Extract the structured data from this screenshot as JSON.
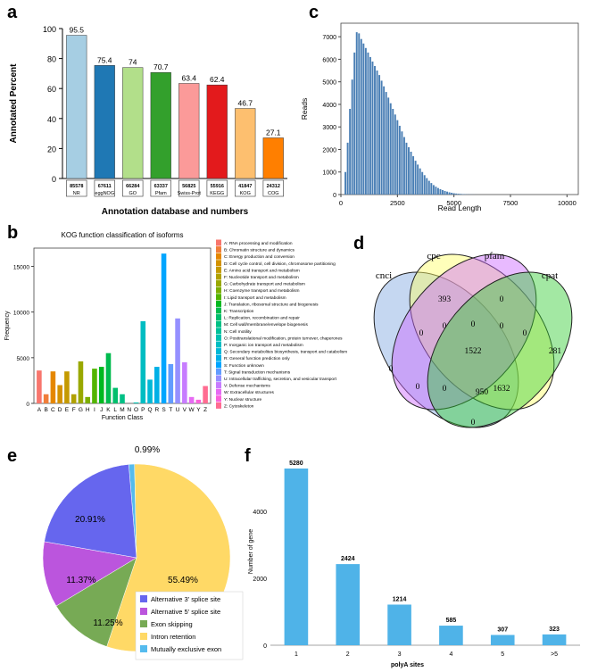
{
  "panels": {
    "a": "a",
    "b": "b",
    "c": "c",
    "d": "d",
    "e": "e",
    "f": "f"
  },
  "chart_data": [
    {
      "id": "a",
      "type": "bar",
      "title": "",
      "xlabel": "Annotation database and numbers",
      "ylabel": "Annotated Percent",
      "ylim": [
        0,
        100
      ],
      "yticks": [
        "0",
        "20",
        "40",
        "60",
        "80",
        "100"
      ],
      "categories": [
        "NR",
        "eggNOG",
        "GO",
        "Pfam",
        "Swiss-Prot",
        "KEGG",
        "KOG",
        "COG"
      ],
      "numbers": [
        "85578",
        "67611",
        "66284",
        "63337",
        "56825",
        "55916",
        "41847",
        "24312"
      ],
      "values": [
        95.5,
        75.4,
        74,
        70.7,
        63.4,
        62.4,
        46.7,
        27.1
      ],
      "value_labels": [
        "95.5",
        "75.4",
        "74",
        "70.7",
        "63.4",
        "62.4",
        "46.7",
        "27.1"
      ],
      "colors": [
        "#a6cee3",
        "#1f78b4",
        "#b2df8a",
        "#33a02c",
        "#fb9a99",
        "#e31a1c",
        "#fdbf6f",
        "#ff7f00"
      ]
    },
    {
      "id": "c",
      "type": "bar",
      "title": "",
      "xlabel": "Read Length",
      "ylabel": "Reads",
      "xlim": [
        0,
        10500
      ],
      "ylim": [
        0,
        7600
      ],
      "xticks": [
        0,
        2500,
        5000,
        7500,
        10000
      ],
      "xtick_labels": [
        "0",
        "2500",
        "5000",
        "7500",
        "10000"
      ],
      "yticks": [
        0,
        1000,
        2000,
        3000,
        4000,
        5000,
        6000,
        7000
      ],
      "ytick_labels": [
        "0",
        "1000",
        "2000",
        "3000",
        "4000",
        "5000",
        "6000",
        "7000"
      ],
      "bin_width": 100,
      "x": [
        200,
        300,
        400,
        500,
        600,
        700,
        800,
        900,
        1000,
        1100,
        1200,
        1300,
        1400,
        1500,
        1600,
        1700,
        1800,
        1900,
        2000,
        2100,
        2200,
        2300,
        2400,
        2500,
        2600,
        2700,
        2800,
        2900,
        3000,
        3100,
        3200,
        3300,
        3400,
        3500,
        3600,
        3700,
        3800,
        3900,
        4000,
        4100,
        4200,
        4300,
        4400,
        4500,
        4600,
        4700,
        4800,
        4900,
        5000,
        5100,
        5200,
        5300,
        5400,
        5500,
        5600,
        5700,
        5800,
        5900,
        6000
      ],
      "values": [
        1000,
        2300,
        3800,
        5100,
        6300,
        7200,
        7150,
        6900,
        6700,
        6500,
        6300,
        6100,
        5900,
        5700,
        5500,
        5300,
        5050,
        4800,
        4550,
        4300,
        4050,
        3800,
        3550,
        3300,
        3050,
        2800,
        2550,
        2300,
        2100,
        1900,
        1700,
        1500,
        1330,
        1160,
        1000,
        860,
        730,
        610,
        510,
        420,
        350,
        290,
        240,
        200,
        160,
        130,
        100,
        80,
        60,
        45,
        35,
        28,
        20,
        15,
        10,
        8,
        5,
        3,
        2
      ],
      "color": "#4a7fb5"
    },
    {
      "id": "b",
      "type": "bar",
      "title": "KOG function classification of isoforms",
      "xlabel": "Function Class",
      "ylabel": "Frequency",
      "ylim": [
        0,
        17000
      ],
      "yticks": [
        0,
        5000,
        10000,
        15000
      ],
      "ytick_labels": [
        "0",
        "5000",
        "10000",
        "15000"
      ],
      "categories": [
        "A",
        "B",
        "C",
        "D",
        "E",
        "F",
        "G",
        "H",
        "I",
        "J",
        "K",
        "L",
        "M",
        "N",
        "O",
        "P",
        "Q",
        "R",
        "S",
        "T",
        "U",
        "V",
        "W",
        "Y",
        "Z"
      ],
      "values": [
        3600,
        1000,
        3500,
        2000,
        3500,
        1000,
        4600,
        700,
        3800,
        4000,
        5500,
        1700,
        1000,
        0,
        100,
        9000,
        2600,
        4000,
        16400,
        4300,
        9300,
        4500,
        700,
        400,
        1900
      ],
      "colors": [
        "#f8766d",
        "#f07e3a",
        "#e58700",
        "#d39200",
        "#c49a00",
        "#b0a100",
        "#99a800",
        "#7cae00",
        "#53b400",
        "#00b81f",
        "#00bb4e",
        "#00be6c",
        "#00c085",
        "#00c19a",
        "#00c0b0",
        "#00bdc2",
        "#00b8d6",
        "#00b0e6",
        "#00a5ff",
        "#619cff",
        "#9590ff",
        "#c77cff",
        "#e76bf3",
        "#fa62db",
        "#ff6c91"
      ],
      "legend": [
        "A: RNA processing and modification",
        "B: Chromatin structure and dynamics",
        "C: Energy production and conversion",
        "D: Cell cycle control, cell division, chromosome partitioning",
        "E: Amino acid transport and metabolism",
        "F: Nucleotide transport and metabolism",
        "G: Carbohydrate transport and metabolism",
        "H: Coenzyme transport and metabolism",
        "I: Lipid transport and metabolism",
        "J: Translation, ribosomal structure and biogenesis",
        "K: Transcription",
        "L: Replication, recombination and repair",
        "M: Cell wall/membrane/envelope biogenesis",
        "N: Cell motility",
        "O: Posttranslational modification, protein turnover, chaperones",
        "P: Inorganic ion transport and metabolism",
        "Q: Secondary metabolites biosynthesis, transport and catabolism",
        "R: General function prediction only",
        "S: Function unknown",
        "T: Signal transduction mechanisms",
        "U: Intracellular trafficking, secretion, and vesicular transport",
        "V: Defense mechanisms",
        "W: Extracellular structures",
        "Y: Nuclear structure",
        "Z: Cytoskeleton"
      ]
    },
    {
      "id": "d",
      "type": "venn",
      "sets": [
        "cnci",
        "cpc",
        "pfam",
        "cpat"
      ],
      "set_colors": [
        "#7ea6e0",
        "#ffff66",
        "#cc66ff",
        "#33cc33"
      ],
      "regions": [
        {
          "region": "cnci only",
          "value": "0"
        },
        {
          "region": "cpc only",
          "value": "393"
        },
        {
          "region": "pfam only",
          "value": "0"
        },
        {
          "region": "cpat only",
          "value": "281"
        },
        {
          "region": "cnci∩cpc",
          "value": "0"
        },
        {
          "region": "cpc∩pfam",
          "value": "0"
        },
        {
          "region": "pfam∩cpat",
          "value": "0"
        },
        {
          "region": "cnci∩cpc∩pfam",
          "value": "0"
        },
        {
          "region": "cpc∩pfam∩cpat",
          "value": "0"
        },
        {
          "region": "all four",
          "value": "1522"
        },
        {
          "region": "cnci∩pfam",
          "value": "0"
        },
        {
          "region": "cpc∩cpat",
          "value": "1632"
        },
        {
          "region": "cnci∩pfam∩cpat",
          "value": "0"
        },
        {
          "region": "cnci∩cpc∩cpat",
          "value": "950"
        },
        {
          "region": "cnci∩cpat",
          "value": "0"
        }
      ]
    },
    {
      "id": "e",
      "type": "pie",
      "labels": [
        "Alternative 3' splice site",
        "Alternative 5' splice site",
        "Exon skipping",
        "Intron retention",
        "Mutually exclusive exon"
      ],
      "values": [
        20.91,
        11.37,
        11.25,
        55.49,
        0.99
      ],
      "value_labels": [
        "20.91%",
        "11.37%",
        "11.25%",
        "55.49%",
        "0.99%"
      ],
      "colors": [
        "#6666ee",
        "#bb55dd",
        "#77aa55",
        "#ffd966",
        "#55bbee"
      ]
    },
    {
      "id": "f",
      "type": "bar",
      "title": "",
      "xlabel": "polyA sites",
      "ylabel": "Number of gene",
      "ylim": [
        0,
        5600
      ],
      "yticks": [
        0,
        2000,
        4000
      ],
      "ytick_labels": [
        "0",
        "2000",
        "4000"
      ],
      "categories": [
        "1",
        "2",
        "3",
        "4",
        "5",
        ">5"
      ],
      "values": [
        5280,
        2424,
        1214,
        585,
        307,
        323
      ],
      "value_labels": [
        "5280",
        "2424",
        "1214",
        "585",
        "307",
        "323"
      ],
      "color": "#4fb3e8"
    }
  ]
}
